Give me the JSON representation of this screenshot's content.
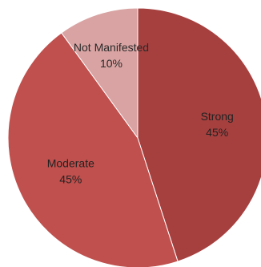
{
  "chart_data": {
    "type": "pie",
    "start_angle_deg": 0,
    "direction": "clockwise",
    "slices": [
      {
        "label": "Strong",
        "value": 45,
        "display": "45%",
        "color": "#a6403f"
      },
      {
        "label": "Moderate",
        "value": 45,
        "display": "45%",
        "color": "#c0504d"
      },
      {
        "label": "Not Manifested",
        "value": 10,
        "display": "10%",
        "color": "#d8a3a2"
      }
    ],
    "legend": "none"
  }
}
